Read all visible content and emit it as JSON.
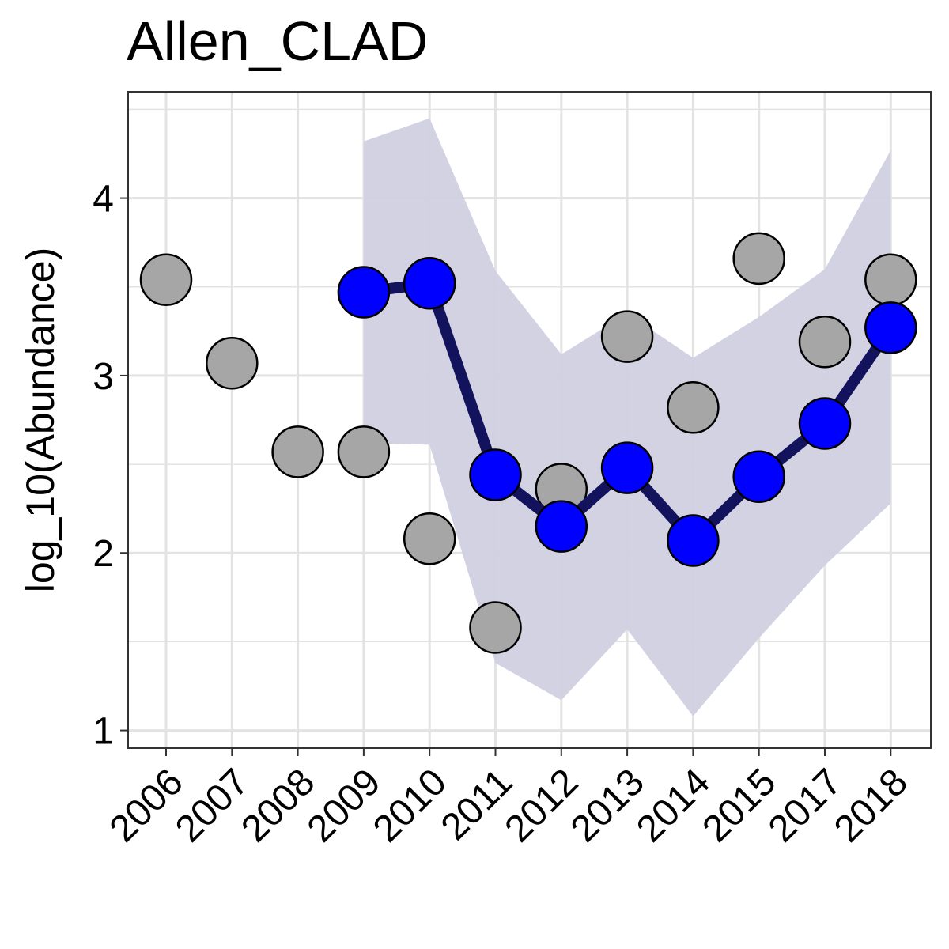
{
  "chart_data": {
    "type": "line",
    "title": "Allen_CLAD",
    "xlabel": "",
    "ylabel": "log_10(Abundance)",
    "categories": [
      "2006",
      "2007",
      "2008",
      "2009",
      "2010",
      "2011",
      "2012",
      "2013",
      "2014",
      "2015",
      "2017",
      "2018"
    ],
    "yticks": [
      1,
      2,
      3,
      4
    ],
    "ylim": [
      0.9,
      4.6
    ],
    "grid": true,
    "observed": [
      3.54,
      3.07,
      2.57,
      2.57,
      2.08,
      1.58,
      2.36,
      3.22,
      2.82,
      3.66,
      3.19,
      3.54
    ],
    "fitted": {
      "start_index": 3,
      "values": [
        3.47,
        3.52,
        2.44,
        2.15,
        2.48,
        2.07,
        2.43,
        2.73,
        3.27
      ],
      "upper": [
        4.32,
        4.45,
        3.59,
        3.12,
        3.35,
        3.1,
        3.33,
        3.6,
        4.27
      ],
      "lower": [
        2.62,
        2.61,
        1.38,
        1.17,
        1.57,
        1.08,
        1.52,
        1.93,
        2.28
      ]
    },
    "colors": {
      "observed_point": "#a6a6a6",
      "fitted_point": "#0000ff",
      "fitted_line": "#13125c",
      "ribbon": "#d0d0e1",
      "grid": "#e3e3e3"
    }
  }
}
